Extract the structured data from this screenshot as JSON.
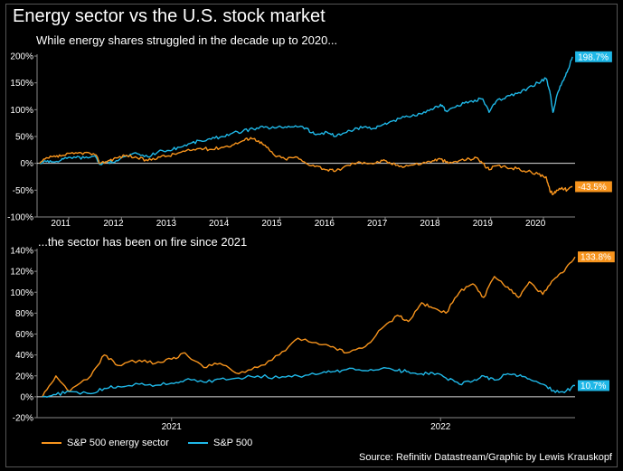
{
  "title": "Energy sector vs the U.S. stock market",
  "colors": {
    "energy": "#f7941d",
    "sp500": "#1fb8e8",
    "background": "#000000",
    "text": "#ffffff",
    "zeroline": "#dddddd",
    "grid": "#444444"
  },
  "legend": {
    "energy": "S&P 500 energy sector",
    "sp500": "S&P 500"
  },
  "source": "Source: Refinitiv Datastream/Graphic by Lewis Krauskopf",
  "chart_data": [
    {
      "type": "line",
      "subtitle": "While energy shares struggled in the decade up to 2020...",
      "x_ticks": [
        "2011",
        "2012",
        "2013",
        "2014",
        "2015",
        "2016",
        "2017",
        "2018",
        "2019",
        "2020"
      ],
      "x_range": [
        2010.4,
        2020.6
      ],
      "y_ticks": [
        "200%",
        "150%",
        "100%",
        "50%",
        "0%",
        "-50%",
        "-100%"
      ],
      "ylim": [
        -100,
        200
      ],
      "series": [
        {
          "name": "S&P 500",
          "color_key": "sp500",
          "end_label": "198.7%",
          "x": [
            2010.45,
            2010.6,
            2010.75,
            2010.9,
            2011.1,
            2011.3,
            2011.5,
            2011.6,
            2011.75,
            2011.9,
            2012.1,
            2012.3,
            2012.5,
            2012.7,
            2012.9,
            2013.1,
            2013.3,
            2013.5,
            2013.7,
            2013.9,
            2014.1,
            2014.3,
            2014.5,
            2014.7,
            2014.9,
            2015.1,
            2015.3,
            2015.5,
            2015.6,
            2015.7,
            2015.9,
            2016.05,
            2016.2,
            2016.4,
            2016.6,
            2016.8,
            2016.95,
            2017.1,
            2017.3,
            2017.5,
            2017.7,
            2017.9,
            2018.05,
            2018.15,
            2018.3,
            2018.5,
            2018.7,
            2018.85,
            2018.97,
            2019.1,
            2019.3,
            2019.5,
            2019.7,
            2019.9,
            2020.05,
            2020.12,
            2020.18,
            2020.25,
            2020.35,
            2020.45,
            2020.55
          ],
          "y": [
            0,
            5,
            3,
            8,
            12,
            10,
            14,
            -2,
            2,
            5,
            14,
            18,
            12,
            22,
            24,
            30,
            37,
            42,
            45,
            50,
            56,
            60,
            64,
            67,
            66,
            68,
            70,
            66,
            57,
            54,
            58,
            50,
            56,
            62,
            68,
            65,
            72,
            78,
            84,
            88,
            92,
            100,
            110,
            98,
            104,
            112,
            118,
            120,
            95,
            115,
            125,
            130,
            140,
            150,
            158,
            135,
            95,
            125,
            150,
            170,
            198.7
          ]
        },
        {
          "name": "S&P 500 energy sector",
          "color_key": "energy",
          "end_label": "-43.5%",
          "x": [
            2010.45,
            2010.6,
            2010.75,
            2010.9,
            2011.1,
            2011.3,
            2011.5,
            2011.6,
            2011.75,
            2011.9,
            2012.1,
            2012.3,
            2012.5,
            2012.7,
            2012.9,
            2013.1,
            2013.3,
            2013.5,
            2013.7,
            2013.9,
            2014.1,
            2014.3,
            2014.45,
            2014.6,
            2014.75,
            2014.9,
            2015.1,
            2015.3,
            2015.5,
            2015.7,
            2015.9,
            2016.05,
            2016.2,
            2016.4,
            2016.6,
            2016.8,
            2016.95,
            2017.1,
            2017.3,
            2017.5,
            2017.7,
            2017.9,
            2018.05,
            2018.2,
            2018.4,
            2018.6,
            2018.75,
            2018.85,
            2018.97,
            2019.1,
            2019.3,
            2019.5,
            2019.7,
            2019.9,
            2020.05,
            2020.12,
            2020.18,
            2020.25,
            2020.35,
            2020.45,
            2020.55
          ],
          "y": [
            0,
            10,
            12,
            15,
            18,
            20,
            16,
            0,
            5,
            10,
            15,
            10,
            5,
            12,
            14,
            20,
            24,
            28,
            26,
            30,
            34,
            42,
            48,
            42,
            30,
            15,
            8,
            12,
            0,
            -5,
            -12,
            -15,
            -8,
            0,
            2,
            0,
            5,
            0,
            -5,
            -3,
            0,
            5,
            8,
            0,
            5,
            8,
            10,
            0,
            -12,
            -5,
            -8,
            -10,
            -15,
            -20,
            -25,
            -50,
            -58,
            -50,
            -45,
            -50,
            -43.5
          ]
        }
      ]
    },
    {
      "type": "line",
      "subtitle": "...the sector has been on fire since 2021",
      "x_ticks": [
        "2021",
        "2022"
      ],
      "x_range": [
        2020.5,
        2022.5
      ],
      "y_ticks": [
        "140%",
        "120%",
        "100%",
        "80%",
        "60%",
        "40%",
        "20%",
        "0%",
        "-20%"
      ],
      "ylim": [
        -20,
        140
      ],
      "series": [
        {
          "name": "S&P 500 energy sector",
          "color_key": "energy",
          "end_label": "133.8%",
          "x": [
            2020.52,
            2020.57,
            2020.62,
            2020.7,
            2020.75,
            2020.8,
            2020.88,
            2020.94,
            2021.0,
            2021.05,
            2021.12,
            2021.18,
            2021.25,
            2021.32,
            2021.4,
            2021.47,
            2021.55,
            2021.6,
            2021.65,
            2021.72,
            2021.78,
            2021.84,
            2021.88,
            2021.93,
            2021.97,
            2022.02,
            2022.07,
            2022.12,
            2022.16,
            2022.2,
            2022.25,
            2022.29,
            2022.33,
            2022.38,
            2022.42,
            2022.46,
            2022.5
          ],
          "y": [
            0,
            20,
            5,
            20,
            40,
            30,
            35,
            32,
            36,
            42,
            28,
            32,
            22,
            28,
            40,
            56,
            50,
            48,
            42,
            48,
            65,
            78,
            72,
            90,
            85,
            80,
            100,
            108,
            95,
            115,
            105,
            95,
            110,
            98,
            112,
            120,
            133.8
          ]
        },
        {
          "name": "S&P 500",
          "color_key": "sp500",
          "end_label": "10.7%",
          "x": [
            2020.52,
            2020.57,
            2020.62,
            2020.7,
            2020.75,
            2020.8,
            2020.88,
            2020.94,
            2021.0,
            2021.05,
            2021.12,
            2021.18,
            2021.25,
            2021.32,
            2021.4,
            2021.47,
            2021.55,
            2021.6,
            2021.65,
            2021.72,
            2021.78,
            2021.84,
            2021.88,
            2021.93,
            2021.97,
            2022.02,
            2022.07,
            2022.12,
            2022.16,
            2022.2,
            2022.25,
            2022.29,
            2022.33,
            2022.38,
            2022.42,
            2022.46,
            2022.5
          ],
          "y": [
            0,
            2,
            5,
            3,
            8,
            10,
            12,
            11,
            13,
            16,
            14,
            17,
            18,
            20,
            18,
            20,
            22,
            24,
            26,
            25,
            27,
            25,
            24,
            22,
            23,
            18,
            12,
            15,
            20,
            16,
            22,
            20,
            17,
            12,
            6,
            4,
            10.7
          ]
        }
      ]
    }
  ]
}
